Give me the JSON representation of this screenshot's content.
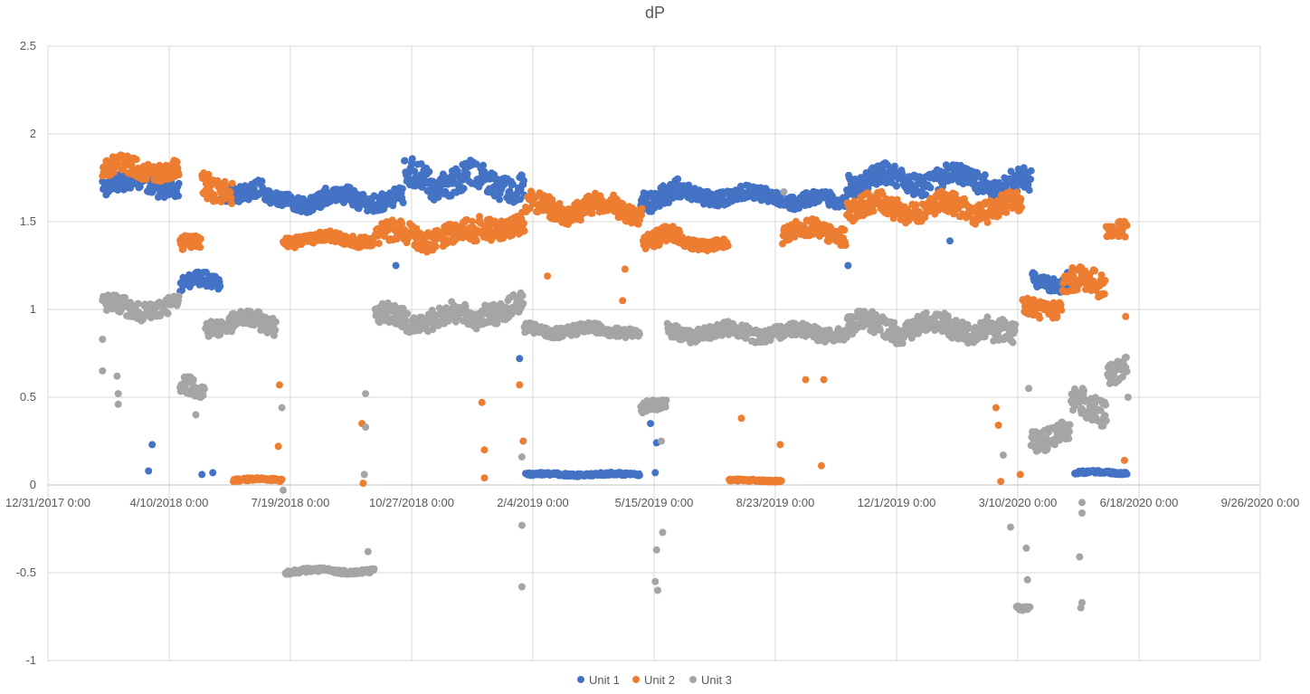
{
  "chart_data": {
    "type": "scatter",
    "title": "dP",
    "xlabel": "",
    "ylabel": "",
    "x_axis": {
      "type": "date",
      "min": "2017-12-31",
      "max": "2020-09-26",
      "tick_labels": [
        "12/31/2017 0:00",
        "4/10/2018 0:00",
        "7/19/2018 0:00",
        "10/27/2018 0:00",
        "2/4/2019 0:00",
        "5/15/2019 0:00",
        "8/23/2019 0:00",
        "12/1/2019 0:00",
        "3/10/2020 0:00",
        "6/18/2020 0:00",
        "9/26/2020 0:00"
      ]
    },
    "y_axis": {
      "min": -1,
      "max": 2.5,
      "tick_labels": [
        "2.5",
        "2",
        "1.5",
        "1",
        "0.5",
        "0",
        "-0.5",
        "-1"
      ]
    },
    "grid": true,
    "legend_position": "bottom",
    "series": [
      {
        "name": "Unit 1",
        "color": "#4472c4",
        "segments": [
          {
            "start": "2018-02-14",
            "end": "2018-04-18",
            "level": 1.71,
            "spread": 0.05
          },
          {
            "start": "2018-04-19",
            "end": "2018-05-22",
            "level": 1.15,
            "spread": 0.04
          },
          {
            "start": "2018-05-23",
            "end": "2018-06-27",
            "level": 1.68,
            "spread": 0.05
          },
          {
            "start": "2018-06-28",
            "end": "2018-07-31",
            "level": 1.62,
            "spread": 0.04
          },
          {
            "start": "2018-08-01",
            "end": "2018-10-20",
            "level": 1.63,
            "spread": 0.05
          },
          {
            "start": "2018-10-21",
            "end": "2018-12-20",
            "level": 1.74,
            "spread": 0.08
          },
          {
            "start": "2018-12-21",
            "end": "2019-01-28",
            "level": 1.72,
            "spread": 0.07
          },
          {
            "start": "2019-01-29",
            "end": "2019-05-03",
            "level": 0.06,
            "spread": 0.008
          },
          {
            "start": "2019-05-04",
            "end": "2019-06-05",
            "level": 1.65,
            "spread": 0.06
          },
          {
            "start": "2019-06-06",
            "end": "2019-08-31",
            "level": 1.65,
            "spread": 0.04
          },
          {
            "start": "2019-09-01",
            "end": "2019-10-20",
            "level": 1.62,
            "spread": 0.04
          },
          {
            "start": "2019-10-21",
            "end": "2020-02-15",
            "level": 1.74,
            "spread": 0.06
          },
          {
            "start": "2020-02-16",
            "end": "2020-03-21",
            "level": 1.7,
            "spread": 0.07
          },
          {
            "start": "2020-03-22",
            "end": "2020-04-25",
            "level": 1.16,
            "spread": 0.04
          },
          {
            "start": "2020-04-26",
            "end": "2020-06-08",
            "level": 0.07,
            "spread": 0.008
          }
        ],
        "outliers": [
          {
            "x": "2018-03-27",
            "y": 0.23
          },
          {
            "x": "2018-03-24",
            "y": 0.08
          },
          {
            "x": "2018-05-07",
            "y": 0.06
          },
          {
            "x": "2018-05-16",
            "y": 0.07
          },
          {
            "x": "2018-09-12",
            "y": 1.62
          },
          {
            "x": "2018-10-14",
            "y": 1.25
          },
          {
            "x": "2019-01-24",
            "y": 0.72
          },
          {
            "x": "2019-05-17",
            "y": 0.24
          },
          {
            "x": "2019-05-16",
            "y": 0.07
          },
          {
            "x": "2019-05-12",
            "y": 0.35
          },
          {
            "x": "2020-01-14",
            "y": 1.39
          },
          {
            "x": "2019-10-22",
            "y": 1.25
          },
          {
            "x": "2020-04-20",
            "y": 1.21
          }
        ]
      },
      {
        "name": "Unit 2",
        "color": "#ed7d31",
        "segments": [
          {
            "start": "2018-02-14",
            "end": "2018-04-18",
            "level": 1.8,
            "spread": 0.05
          },
          {
            "start": "2018-04-19",
            "end": "2018-05-06",
            "level": 1.36,
            "spread": 0.04
          },
          {
            "start": "2018-05-07",
            "end": "2018-06-01",
            "level": 1.7,
            "spread": 0.08
          },
          {
            "start": "2018-06-02",
            "end": "2018-07-12",
            "level": 0.03,
            "spread": 0.008
          },
          {
            "start": "2018-07-13",
            "end": "2018-09-26",
            "level": 1.4,
            "spread": 0.03
          },
          {
            "start": "2018-09-27",
            "end": "2018-12-20",
            "level": 1.42,
            "spread": 0.06
          },
          {
            "start": "2018-12-21",
            "end": "2019-01-28",
            "level": 1.48,
            "spread": 0.06
          },
          {
            "start": "2019-01-29",
            "end": "2019-05-05",
            "level": 1.58,
            "spread": 0.06
          },
          {
            "start": "2019-05-06",
            "end": "2019-06-06",
            "level": 1.4,
            "spread": 0.05
          },
          {
            "start": "2019-06-07",
            "end": "2019-07-15",
            "level": 1.38,
            "spread": 0.03
          },
          {
            "start": "2019-07-16",
            "end": "2019-08-28",
            "level": 0.025,
            "spread": 0.006
          },
          {
            "start": "2019-08-29",
            "end": "2019-10-20",
            "level": 1.44,
            "spread": 0.05
          },
          {
            "start": "2019-10-21",
            "end": "2020-01-30",
            "level": 1.58,
            "spread": 0.06
          },
          {
            "start": "2020-01-31",
            "end": "2020-03-13",
            "level": 1.58,
            "spread": 0.06
          },
          {
            "start": "2020-03-14",
            "end": "2020-04-15",
            "level": 1.02,
            "spread": 0.05
          },
          {
            "start": "2020-04-16",
            "end": "2020-05-21",
            "level": 1.14,
            "spread": 0.07
          },
          {
            "start": "2020-05-22",
            "end": "2020-06-08",
            "level": 1.48,
            "spread": 0.05
          }
        ],
        "outliers": [
          {
            "x": "2018-07-09",
            "y": 0.22
          },
          {
            "x": "2018-07-10",
            "y": 0.57
          },
          {
            "x": "2018-09-16",
            "y": 0.35
          },
          {
            "x": "2018-09-17",
            "y": 0.01
          },
          {
            "x": "2018-12-24",
            "y": 0.47
          },
          {
            "x": "2018-12-26",
            "y": 0.2
          },
          {
            "x": "2018-12-26",
            "y": 0.04
          },
          {
            "x": "2019-01-24",
            "y": 0.57
          },
          {
            "x": "2019-01-27",
            "y": 0.25
          },
          {
            "x": "2019-02-16",
            "y": 1.19
          },
          {
            "x": "2019-04-19",
            "y": 1.05
          },
          {
            "x": "2019-04-21",
            "y": 1.23
          },
          {
            "x": "2019-07-26",
            "y": 0.38
          },
          {
            "x": "2019-08-27",
            "y": 0.23
          },
          {
            "x": "2019-09-17",
            "y": 0.6
          },
          {
            "x": "2019-09-30",
            "y": 0.11
          },
          {
            "x": "2019-10-02",
            "y": 0.6
          },
          {
            "x": "2020-02-21",
            "y": 0.44
          },
          {
            "x": "2020-02-23",
            "y": 0.34
          },
          {
            "x": "2020-02-25",
            "y": 0.02
          },
          {
            "x": "2020-03-12",
            "y": 0.06
          },
          {
            "x": "2020-06-06",
            "y": 0.14
          },
          {
            "x": "2020-06-07",
            "y": 0.96
          }
        ]
      },
      {
        "name": "Unit 3",
        "color": "#a5a5a5",
        "segments": [
          {
            "start": "2018-02-14",
            "end": "2018-04-18",
            "level": 1.01,
            "spread": 0.05
          },
          {
            "start": "2018-04-19",
            "end": "2018-05-09",
            "level": 0.55,
            "spread": 0.05
          },
          {
            "start": "2018-05-10",
            "end": "2018-07-07",
            "level": 0.92,
            "spread": 0.05
          },
          {
            "start": "2018-07-15",
            "end": "2018-09-26",
            "level": -0.49,
            "spread": 0.012
          },
          {
            "start": "2018-09-27",
            "end": "2018-12-20",
            "level": 0.95,
            "spread": 0.06
          },
          {
            "start": "2018-12-21",
            "end": "2019-01-27",
            "level": 1.0,
            "spread": 0.06
          },
          {
            "start": "2019-01-28",
            "end": "2019-05-03",
            "level": 0.88,
            "spread": 0.03
          },
          {
            "start": "2019-05-04",
            "end": "2019-05-25",
            "level": 0.44,
            "spread": 0.03
          },
          {
            "start": "2019-05-26",
            "end": "2019-10-20",
            "level": 0.87,
            "spread": 0.04
          },
          {
            "start": "2019-10-21",
            "end": "2020-02-15",
            "level": 0.9,
            "spread": 0.06
          },
          {
            "start": "2020-02-16",
            "end": "2020-03-08",
            "level": 0.85,
            "spread": 0.06
          },
          {
            "start": "2020-03-09",
            "end": "2020-03-20",
            "level": -0.7,
            "spread": 0.012
          },
          {
            "start": "2020-03-21",
            "end": "2020-04-22",
            "level": 0.28,
            "spread": 0.06
          },
          {
            "start": "2020-04-23",
            "end": "2020-05-22",
            "level": 0.45,
            "spread": 0.08
          },
          {
            "start": "2020-05-23",
            "end": "2020-06-08",
            "level": 0.66,
            "spread": 0.06
          }
        ],
        "outliers": [
          {
            "x": "2018-02-14",
            "y": 0.65
          },
          {
            "x": "2018-02-14",
            "y": 0.83
          },
          {
            "x": "2018-02-26",
            "y": 0.62
          },
          {
            "x": "2018-02-27",
            "y": 0.52
          },
          {
            "x": "2018-02-27",
            "y": 0.46
          },
          {
            "x": "2018-05-02",
            "y": 0.4
          },
          {
            "x": "2018-07-13",
            "y": -0.03
          },
          {
            "x": "2018-07-12",
            "y": 0.44
          },
          {
            "x": "2018-09-19",
            "y": 0.52
          },
          {
            "x": "2018-09-19",
            "y": 0.33
          },
          {
            "x": "2018-09-18",
            "y": 0.06
          },
          {
            "x": "2018-09-21",
            "y": -0.38
          },
          {
            "x": "2019-01-26",
            "y": 0.16
          },
          {
            "x": "2019-01-26",
            "y": -0.23
          },
          {
            "x": "2019-01-26",
            "y": -0.58
          },
          {
            "x": "2019-05-16",
            "y": -0.55
          },
          {
            "x": "2019-05-18",
            "y": -0.6
          },
          {
            "x": "2019-05-17",
            "y": -0.37
          },
          {
            "x": "2019-05-22",
            "y": -0.27
          },
          {
            "x": "2019-05-21",
            "y": 0.25
          },
          {
            "x": "2019-08-30",
            "y": 1.67
          },
          {
            "x": "2020-02-27",
            "y": 0.17
          },
          {
            "x": "2020-03-17",
            "y": -0.36
          },
          {
            "x": "2020-03-18",
            "y": -0.54
          },
          {
            "x": "2020-03-19",
            "y": 0.55
          },
          {
            "x": "2020-03-04",
            "y": -0.24
          },
          {
            "x": "2020-04-30",
            "y": -0.41
          },
          {
            "x": "2020-05-02",
            "y": -0.67
          },
          {
            "x": "2020-05-01",
            "y": -0.7
          },
          {
            "x": "2020-05-02",
            "y": -0.1
          },
          {
            "x": "2020-05-02",
            "y": -0.16
          },
          {
            "x": "2020-06-09",
            "y": 0.5
          }
        ]
      }
    ]
  }
}
